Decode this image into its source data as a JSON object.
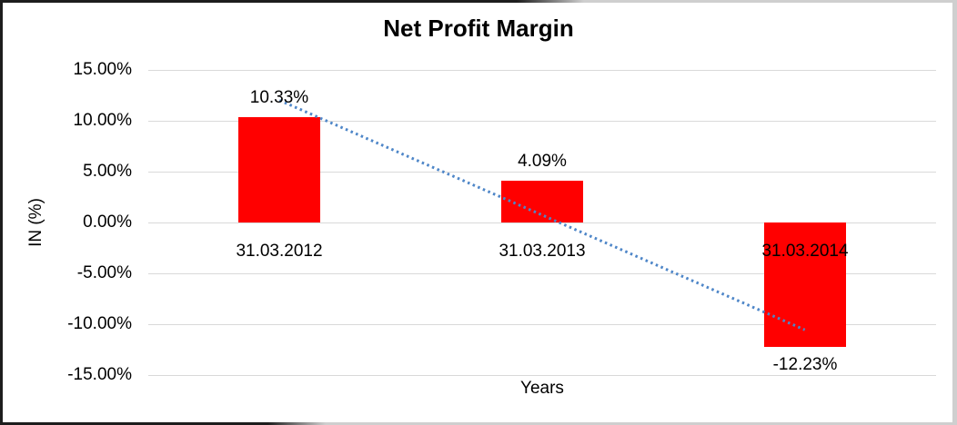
{
  "chart_data": {
    "type": "bar",
    "title": "Net Profit Margin",
    "xlabel": "Years",
    "ylabel": "IN (%)",
    "categories": [
      "31.03.2012",
      "31.03.2013",
      "31.03.2014"
    ],
    "values": [
      10.33,
      4.09,
      -12.23
    ],
    "data_labels": [
      "10.33%",
      "4.09%",
      "-12.23%"
    ],
    "yticks": [
      15,
      10,
      5,
      0,
      -5,
      -10,
      -15
    ],
    "ytick_labels": [
      "15.00%",
      "10.00%",
      "5.00%",
      "0.00%",
      "-5.00%",
      "-10.00%",
      "-15.00%"
    ],
    "ylim": [
      -15,
      15
    ],
    "grid": true,
    "legend": "none",
    "bar_color": "#ff0000",
    "trendline": {
      "type": "linear",
      "style": "dotted",
      "color": "#4e86c8",
      "endpoint_values": [
        12.01,
        -10.55
      ]
    }
  },
  "colors": {
    "bar": "#ff0000",
    "trendline": "#4e86c8",
    "gridline": "#d9d9d9",
    "text": "#000000",
    "background": "#ffffff",
    "frame_dark": "#1d1d1d",
    "frame_light": "#cfcfcf"
  }
}
